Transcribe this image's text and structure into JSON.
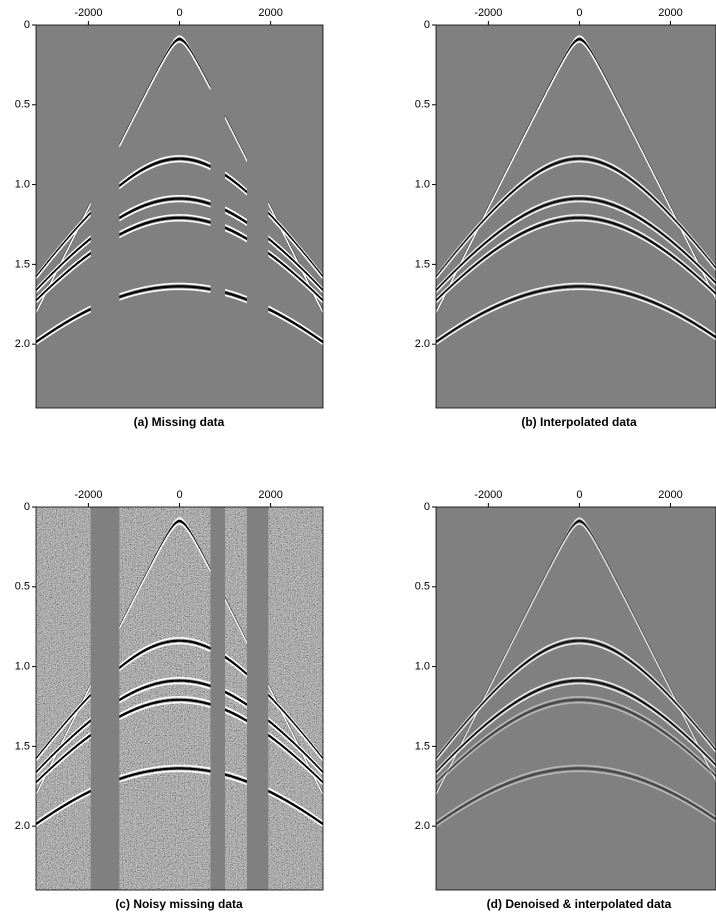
{
  "panels": [
    {
      "caption": "(a) Missing data",
      "xlim": [
        -3150,
        3150
      ],
      "xticks": [
        -2000,
        0,
        2000
      ],
      "ylim": [
        0,
        2.4
      ],
      "yticks": [
        0,
        0.5,
        {
          "value": 1,
          "label": "1.0"
        },
        1.5,
        {
          "value": 2,
          "label": "2.0"
        }
      ]
    },
    {
      "caption": "(b) Interpolated data",
      "xlim": [
        -3150,
        3000
      ],
      "xticks": [
        -2000,
        0,
        2000
      ],
      "ylim": [
        0,
        2.4
      ],
      "yticks": [
        0,
        0.5,
        {
          "value": 1,
          "label": "1.0"
        },
        1.5,
        {
          "value": 2,
          "label": "2.0"
        }
      ]
    },
    {
      "caption": "(c) Noisy missing data",
      "xlim": [
        -3150,
        3150
      ],
      "xticks": [
        -2000,
        0,
        2000
      ],
      "ylim": [
        0,
        2.4
      ],
      "yticks": [
        0,
        0.5,
        {
          "value": 1,
          "label": "1.0"
        },
        1.5,
        {
          "value": 2,
          "label": "2.0"
        }
      ]
    },
    {
      "caption": "(d) Denoised & interpolated data",
      "xlim": [
        -3150,
        3000
      ],
      "xticks": [
        -2000,
        0,
        2000
      ],
      "ylim": [
        0,
        2.4
      ],
      "yticks": [
        0,
        0.5,
        {
          "value": 1,
          "label": "1.0"
        },
        1.5,
        {
          "value": 2,
          "label": "2.0"
        }
      ]
    }
  ]
}
